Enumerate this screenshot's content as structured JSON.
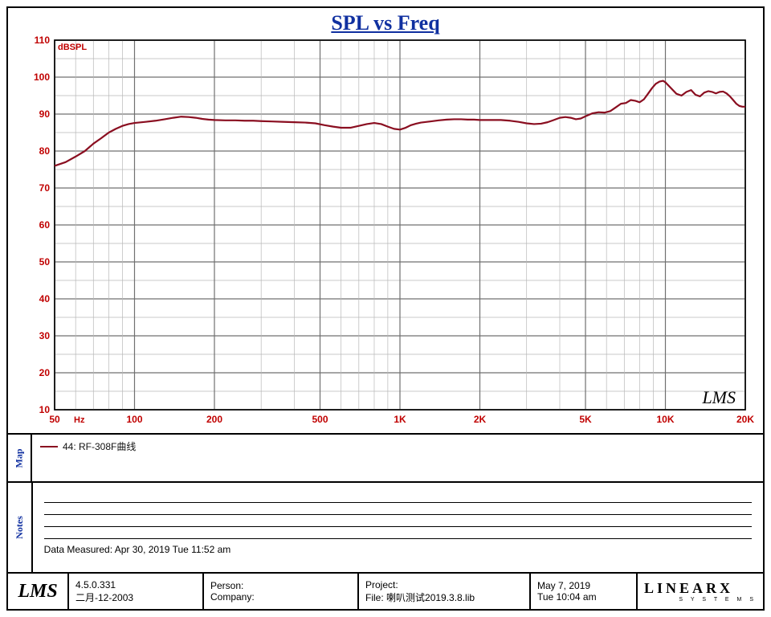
{
  "title": "SPL vs Freq",
  "chart": {
    "type": "line",
    "x_scale": "log",
    "x_unit": "Hz",
    "xlim": [
      50,
      20000
    ],
    "x_ticks_major": [
      50,
      100,
      200,
      500,
      1000,
      2000,
      5000,
      10000,
      20000
    ],
    "x_tick_labels": [
      "50",
      "100",
      "200",
      "500",
      "1K",
      "2K",
      "5K",
      "10K",
      "20K"
    ],
    "x_ticks_minor": [
      60,
      70,
      80,
      90,
      300,
      400,
      600,
      700,
      800,
      900,
      3000,
      4000,
      6000,
      7000,
      8000,
      9000,
      30000
    ],
    "y_unit": "dBSPL",
    "ylim": [
      10,
      110
    ],
    "y_tick_step": 10,
    "y_ticks": [
      10,
      20,
      30,
      40,
      50,
      60,
      70,
      80,
      90,
      100,
      110
    ],
    "y_minor_step": 5,
    "background_color": "#ffffff",
    "grid_major_color": "#707070",
    "grid_minor_color": "#b8b8b8",
    "grid_major_width": 1.2,
    "grid_minor_width": 0.7,
    "axis_label_color": "#c00000",
    "axis_label_fontsize": 12,
    "border_color": "#000000",
    "watermark": "LMS",
    "series": [
      {
        "name": "44: RF-308F曲线",
        "color": "#8a0e20",
        "line_width": 2.2,
        "data": [
          [
            50,
            76
          ],
          [
            55,
            77
          ],
          [
            60,
            78.5
          ],
          [
            65,
            80
          ],
          [
            70,
            82
          ],
          [
            75,
            83.5
          ],
          [
            80,
            85
          ],
          [
            85,
            86
          ],
          [
            90,
            86.8
          ],
          [
            95,
            87.3
          ],
          [
            100,
            87.6
          ],
          [
            110,
            87.9
          ],
          [
            120,
            88.2
          ],
          [
            130,
            88.6
          ],
          [
            140,
            89.0
          ],
          [
            150,
            89.3
          ],
          [
            160,
            89.2
          ],
          [
            170,
            89.0
          ],
          [
            180,
            88.7
          ],
          [
            190,
            88.5
          ],
          [
            200,
            88.4
          ],
          [
            220,
            88.3
          ],
          [
            240,
            88.3
          ],
          [
            260,
            88.2
          ],
          [
            280,
            88.2
          ],
          [
            300,
            88.1
          ],
          [
            330,
            88.0
          ],
          [
            360,
            87.9
          ],
          [
            400,
            87.8
          ],
          [
            440,
            87.7
          ],
          [
            480,
            87.5
          ],
          [
            520,
            87.0
          ],
          [
            560,
            86.6
          ],
          [
            600,
            86.3
          ],
          [
            650,
            86.3
          ],
          [
            700,
            86.8
          ],
          [
            750,
            87.3
          ],
          [
            800,
            87.6
          ],
          [
            850,
            87.3
          ],
          [
            900,
            86.6
          ],
          [
            950,
            86.0
          ],
          [
            1000,
            85.8
          ],
          [
            1050,
            86.3
          ],
          [
            1100,
            87.0
          ],
          [
            1150,
            87.4
          ],
          [
            1200,
            87.7
          ],
          [
            1300,
            88.0
          ],
          [
            1400,
            88.3
          ],
          [
            1500,
            88.5
          ],
          [
            1600,
            88.6
          ],
          [
            1700,
            88.6
          ],
          [
            1800,
            88.5
          ],
          [
            1900,
            88.5
          ],
          [
            2000,
            88.4
          ],
          [
            2200,
            88.4
          ],
          [
            2400,
            88.4
          ],
          [
            2600,
            88.2
          ],
          [
            2800,
            87.9
          ],
          [
            3000,
            87.5
          ],
          [
            3200,
            87.3
          ],
          [
            3400,
            87.4
          ],
          [
            3600,
            87.8
          ],
          [
            3800,
            88.4
          ],
          [
            4000,
            89.0
          ],
          [
            4200,
            89.2
          ],
          [
            4400,
            89.0
          ],
          [
            4600,
            88.6
          ],
          [
            4800,
            88.8
          ],
          [
            5000,
            89.4
          ],
          [
            5300,
            90.2
          ],
          [
            5600,
            90.5
          ],
          [
            5900,
            90.4
          ],
          [
            6200,
            90.8
          ],
          [
            6500,
            91.8
          ],
          [
            6800,
            92.8
          ],
          [
            7100,
            93.0
          ],
          [
            7400,
            93.8
          ],
          [
            7700,
            93.6
          ],
          [
            8000,
            93.2
          ],
          [
            8300,
            94.0
          ],
          [
            8600,
            95.5
          ],
          [
            8900,
            97.0
          ],
          [
            9200,
            98.2
          ],
          [
            9500,
            98.8
          ],
          [
            9800,
            99.0
          ],
          [
            10000,
            98.6
          ],
          [
            10500,
            97.0
          ],
          [
            11000,
            95.5
          ],
          [
            11500,
            95.0
          ],
          [
            12000,
            96.0
          ],
          [
            12500,
            96.5
          ],
          [
            13000,
            95.2
          ],
          [
            13500,
            94.8
          ],
          [
            14000,
            95.8
          ],
          [
            14500,
            96.2
          ],
          [
            15000,
            96.0
          ],
          [
            15500,
            95.6
          ],
          [
            16000,
            96.0
          ],
          [
            16500,
            96.1
          ],
          [
            17000,
            95.6
          ],
          [
            17500,
            94.8
          ],
          [
            18000,
            93.8
          ],
          [
            18500,
            92.8
          ],
          [
            19000,
            92.2
          ],
          [
            19500,
            92.0
          ],
          [
            20000,
            92.0
          ]
        ]
      }
    ]
  },
  "map": {
    "tab_label": "Map"
  },
  "notes": {
    "tab_label": "Notes",
    "line_count": 4,
    "measured_label": "Data Measured:",
    "measured_value": "Apr 30, 2019  Tue  11:52 am"
  },
  "footer": {
    "logo": "LMS",
    "version": "4.5.0.331",
    "build_date": "二月-12-2003",
    "person_label": "Person:",
    "person_value": "",
    "company_label": "Company:",
    "company_value": "",
    "project_label": "Project:",
    "project_value": "",
    "file_label": "File:",
    "file_value": "喇叭测试2019.3.8.lib",
    "date": "May  7, 2019",
    "time": "Tue 10:04 am",
    "brand": "LINEARX",
    "brand_sub": "S Y S T E M S"
  }
}
